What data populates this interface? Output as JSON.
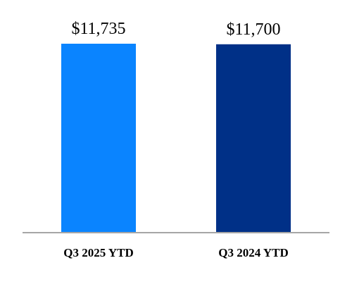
{
  "chart_data": {
    "type": "bar",
    "categories": [
      "Q3 2025 YTD",
      "Q3 2024 YTD"
    ],
    "values": [
      11735,
      11700
    ],
    "data_labels": [
      "$11,735",
      "$11,700"
    ],
    "colors": [
      "#0A84FF",
      "#003087"
    ],
    "axis_color": "#A6A6A6",
    "ylim": [
      0,
      11735
    ],
    "grid": false,
    "legend": "none"
  }
}
